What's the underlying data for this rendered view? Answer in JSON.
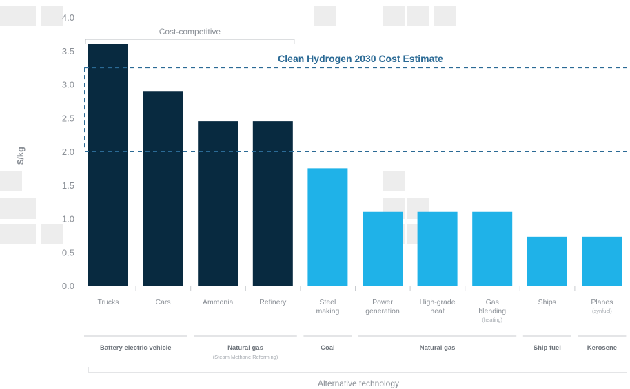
{
  "chart_data": {
    "type": "bar",
    "ylabel": "$/kg",
    "ylim": [
      0,
      4.0
    ],
    "yticks": [
      "0.0",
      "0.5",
      "1.0",
      "1.5",
      "2.0",
      "2.5",
      "3.0",
      "3.5",
      "4.0"
    ],
    "categories": [
      {
        "label": [
          "Trucks"
        ],
        "sub": ""
      },
      {
        "label": [
          "Cars"
        ],
        "sub": ""
      },
      {
        "label": [
          "Ammonia"
        ],
        "sub": ""
      },
      {
        "label": [
          "Refinery"
        ],
        "sub": ""
      },
      {
        "label": [
          "Steel",
          "making"
        ],
        "sub": ""
      },
      {
        "label": [
          "Power",
          "generation"
        ],
        "sub": ""
      },
      {
        "label": [
          "High-grade",
          "heat"
        ],
        "sub": ""
      },
      {
        "label": [
          "Gas",
          "blending"
        ],
        "sub": "(heating)"
      },
      {
        "label": [
          "Ships"
        ],
        "sub": ""
      },
      {
        "label": [
          "Planes"
        ],
        "sub": "(synfuel)"
      }
    ],
    "values": [
      3.6,
      2.9,
      2.45,
      2.45,
      1.75,
      1.1,
      1.1,
      1.1,
      0.73,
      0.73
    ],
    "bar_colors": [
      "#082a40",
      "#082a40",
      "#082a40",
      "#082a40",
      "#1fb2e8",
      "#1fb2e8",
      "#1fb2e8",
      "#1fb2e8",
      "#1fb2e8",
      "#1fb2e8"
    ],
    "groups": [
      {
        "label": "Battery electric vehicle",
        "sub": "",
        "from": 0,
        "to": 1
      },
      {
        "label": "Natural gas",
        "sub": "(Steam Methane Reforming)",
        "from": 2,
        "to": 3
      },
      {
        "label": "Coal",
        "sub": "",
        "from": 4,
        "to": 4
      },
      {
        "label": "Natural gas",
        "sub": "",
        "from": 5,
        "to": 7
      },
      {
        "label": "Ship fuel",
        "sub": "",
        "from": 8,
        "to": 8
      },
      {
        "label": "Kerosene",
        "sub": "",
        "from": 9,
        "to": 9
      }
    ],
    "top_bracket": {
      "label": "Cost-competitive",
      "from": 0,
      "to": 3
    },
    "cost_band": {
      "label": "Clean Hydrogen 2030 Cost Estimate",
      "low": 2.0,
      "high": 3.25,
      "color": "#2b6a95"
    },
    "footer": "Alternative technology",
    "grid": false
  }
}
